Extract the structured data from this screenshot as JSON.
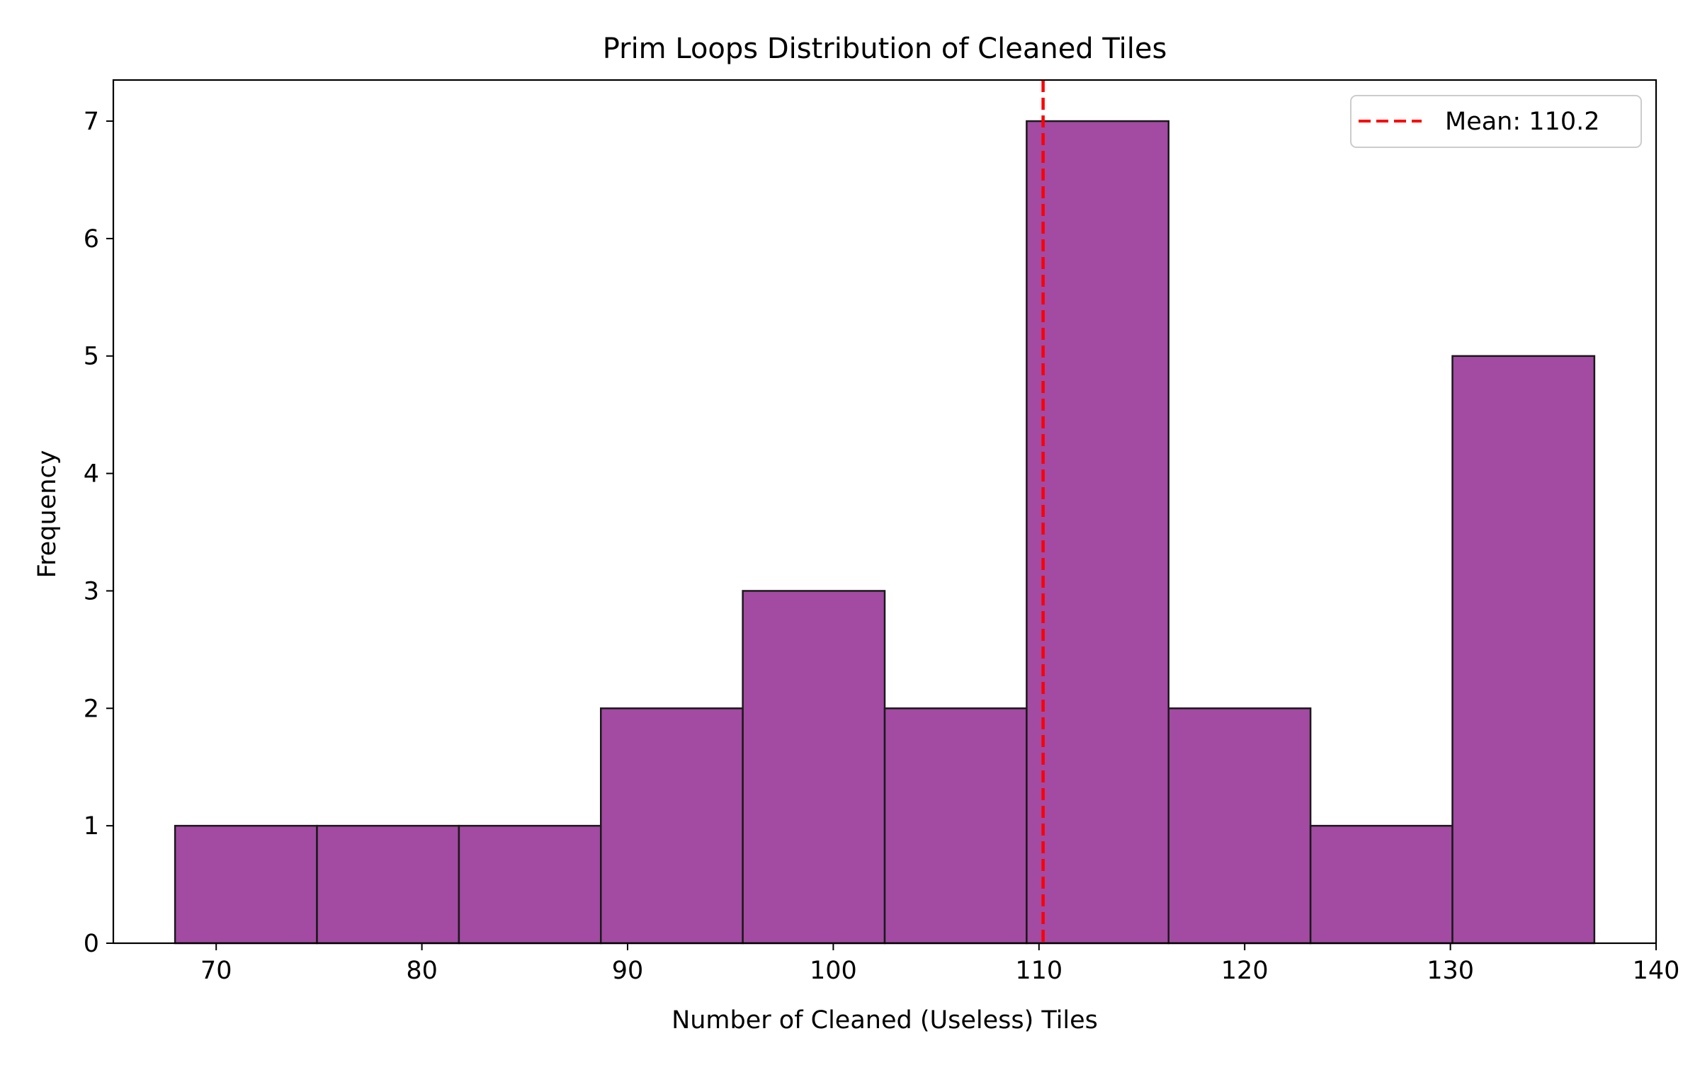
{
  "chart_data": {
    "type": "bar",
    "title": "Prim Loops Distribution of Cleaned Tiles",
    "xlabel": "Number of Cleaned (Useless) Tiles",
    "ylabel": "Frequency",
    "xlim": [
      65,
      140
    ],
    "ylim": [
      0,
      7.35
    ],
    "xticks": [
      70,
      80,
      90,
      100,
      110,
      120,
      130,
      140
    ],
    "yticks": [
      0,
      1,
      2,
      3,
      4,
      5,
      6,
      7
    ],
    "bins": [
      {
        "x0": 68.0,
        "x1": 74.9,
        "count": 1
      },
      {
        "x0": 74.9,
        "x1": 81.8,
        "count": 1
      },
      {
        "x0": 81.8,
        "x1": 88.7,
        "count": 1
      },
      {
        "x0": 88.7,
        "x1": 95.6,
        "count": 2
      },
      {
        "x0": 95.6,
        "x1": 102.5,
        "count": 3
      },
      {
        "x0": 102.5,
        "x1": 109.4,
        "count": 2
      },
      {
        "x0": 109.4,
        "x1": 116.3,
        "count": 7
      },
      {
        "x0": 116.3,
        "x1": 123.2,
        "count": 2
      },
      {
        "x0": 123.2,
        "x1": 130.1,
        "count": 1
      },
      {
        "x0": 130.1,
        "x1": 137.0,
        "count": 5
      }
    ],
    "bar_color": "#9b3b9b",
    "edge_color": "#1a1a1a",
    "mean": 110.2,
    "mean_color": "#ff0000",
    "legend": {
      "placement": "top-right",
      "entries": [
        {
          "label": "Mean: 110.2",
          "style": "dashed-line",
          "color": "#ff0000"
        }
      ]
    },
    "grid": false
  }
}
